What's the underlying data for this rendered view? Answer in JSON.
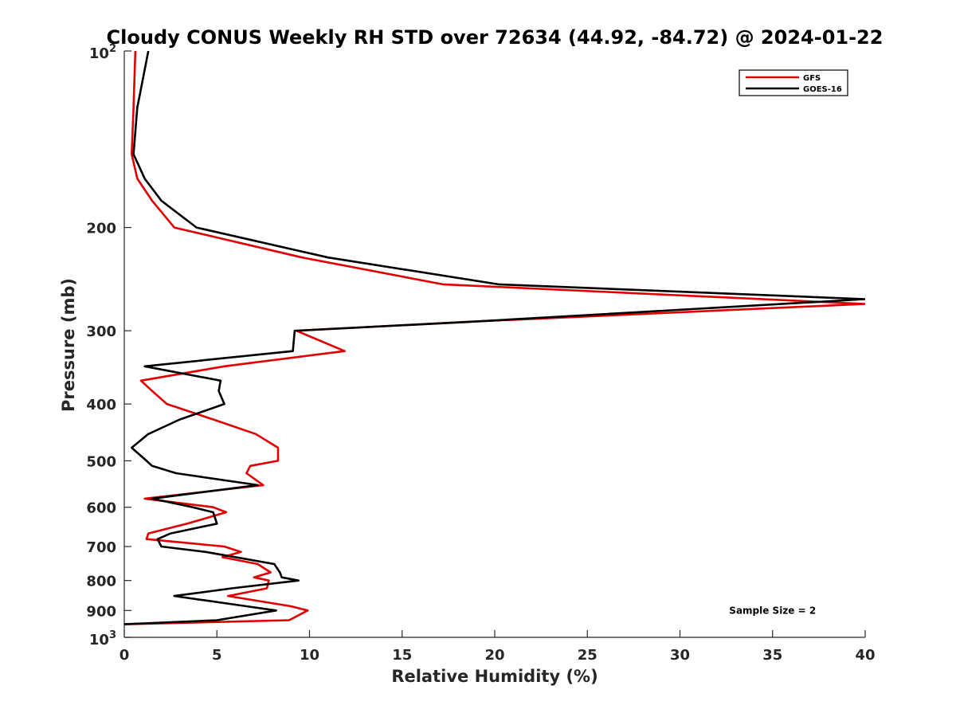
{
  "chart_data": {
    "type": "line",
    "title": "Cloudy CONUS Weekly RH STD over 72634 (44.92, -84.72) @ 2024-01-22",
    "xlabel": "Relative Humidity (%)",
    "ylabel": "Pressure (mb)",
    "xlim": [
      0,
      40
    ],
    "ylim": [
      100,
      1000
    ],
    "y_scale": "log",
    "y_reversed": true,
    "x_ticks": [
      0,
      5,
      10,
      15,
      20,
      25,
      30,
      35,
      40
    ],
    "x_tick_labels": [
      "0",
      "5",
      "10",
      "15",
      "20",
      "25",
      "30",
      "35",
      "40"
    ],
    "y_ticks": [
      100,
      200,
      300,
      400,
      500,
      600,
      700,
      800,
      900,
      1000
    ],
    "y_tick_labels": [
      {
        "base": "10",
        "exp": "2"
      },
      {
        "base": "200"
      },
      {
        "base": "300"
      },
      {
        "base": "400"
      },
      {
        "base": "500"
      },
      {
        "base": "600"
      },
      {
        "base": "700"
      },
      {
        "base": "800"
      },
      {
        "base": "900"
      },
      {
        "base": "10",
        "exp": "3"
      }
    ],
    "grid": false,
    "legend_position": "top-right",
    "series": [
      {
        "name": "GFS",
        "color": "#e00000",
        "points": [
          [
            0.6,
            100
          ],
          [
            0.5,
            125
          ],
          [
            0.4,
            150
          ],
          [
            0.7,
            165
          ],
          [
            1.5,
            180
          ],
          [
            2.7,
            200
          ],
          [
            9.6,
            225
          ],
          [
            17.2,
            250
          ],
          [
            40,
            270
          ],
          [
            18.2,
            290
          ],
          [
            9.3,
            300
          ],
          [
            11.9,
            325
          ],
          [
            5.4,
            345
          ],
          [
            0.9,
            365
          ],
          [
            1.5,
            380
          ],
          [
            2.3,
            400
          ],
          [
            4.8,
            425
          ],
          [
            7.1,
            450
          ],
          [
            8.3,
            475
          ],
          [
            8.3,
            500
          ],
          [
            6.8,
            510
          ],
          [
            6.6,
            525
          ],
          [
            7.5,
            550
          ],
          [
            1.1,
            580
          ],
          [
            4.8,
            600
          ],
          [
            5.5,
            612
          ],
          [
            3.4,
            640
          ],
          [
            1.3,
            665
          ],
          [
            1.2,
            680
          ],
          [
            5.4,
            700
          ],
          [
            6.3,
            715
          ],
          [
            5.3,
            730
          ],
          [
            7.2,
            750
          ],
          [
            7.9,
            775
          ],
          [
            7.0,
            790
          ],
          [
            7.8,
            800
          ],
          [
            7.7,
            825
          ],
          [
            5.6,
            850
          ],
          [
            9.0,
            885
          ],
          [
            9.9,
            900
          ],
          [
            8.9,
            935
          ],
          [
            0.0,
            950
          ]
        ]
      },
      {
        "name": "GOES-16",
        "color": "#000000",
        "points": [
          [
            1.3,
            100
          ],
          [
            0.7,
            125
          ],
          [
            0.5,
            150
          ],
          [
            1.1,
            165
          ],
          [
            2.0,
            180
          ],
          [
            3.9,
            200
          ],
          [
            11.0,
            225
          ],
          [
            20.2,
            250
          ],
          [
            40,
            265
          ],
          [
            18.4,
            290
          ],
          [
            9.2,
            300
          ],
          [
            9.1,
            325
          ],
          [
            1.1,
            345
          ],
          [
            5.2,
            365
          ],
          [
            5.1,
            380
          ],
          [
            5.4,
            400
          ],
          [
            3.0,
            425
          ],
          [
            1.3,
            450
          ],
          [
            0.4,
            475
          ],
          [
            1.2,
            500
          ],
          [
            1.5,
            510
          ],
          [
            2.8,
            525
          ],
          [
            7.2,
            550
          ],
          [
            1.5,
            580
          ],
          [
            3.7,
            600
          ],
          [
            4.8,
            612
          ],
          [
            5.0,
            640
          ],
          [
            2.5,
            665
          ],
          [
            1.8,
            680
          ],
          [
            2.0,
            700
          ],
          [
            4.4,
            715
          ],
          [
            8.1,
            750
          ],
          [
            8.4,
            775
          ],
          [
            8.5,
            790
          ],
          [
            9.4,
            800
          ],
          [
            5.8,
            825
          ],
          [
            2.7,
            850
          ],
          [
            6.6,
            885
          ],
          [
            8.2,
            900
          ],
          [
            5.0,
            935
          ],
          [
            0.0,
            950
          ]
        ]
      }
    ],
    "annotations": [
      {
        "text": "Sample Size = 2",
        "x": 35,
        "y": 900
      }
    ]
  }
}
